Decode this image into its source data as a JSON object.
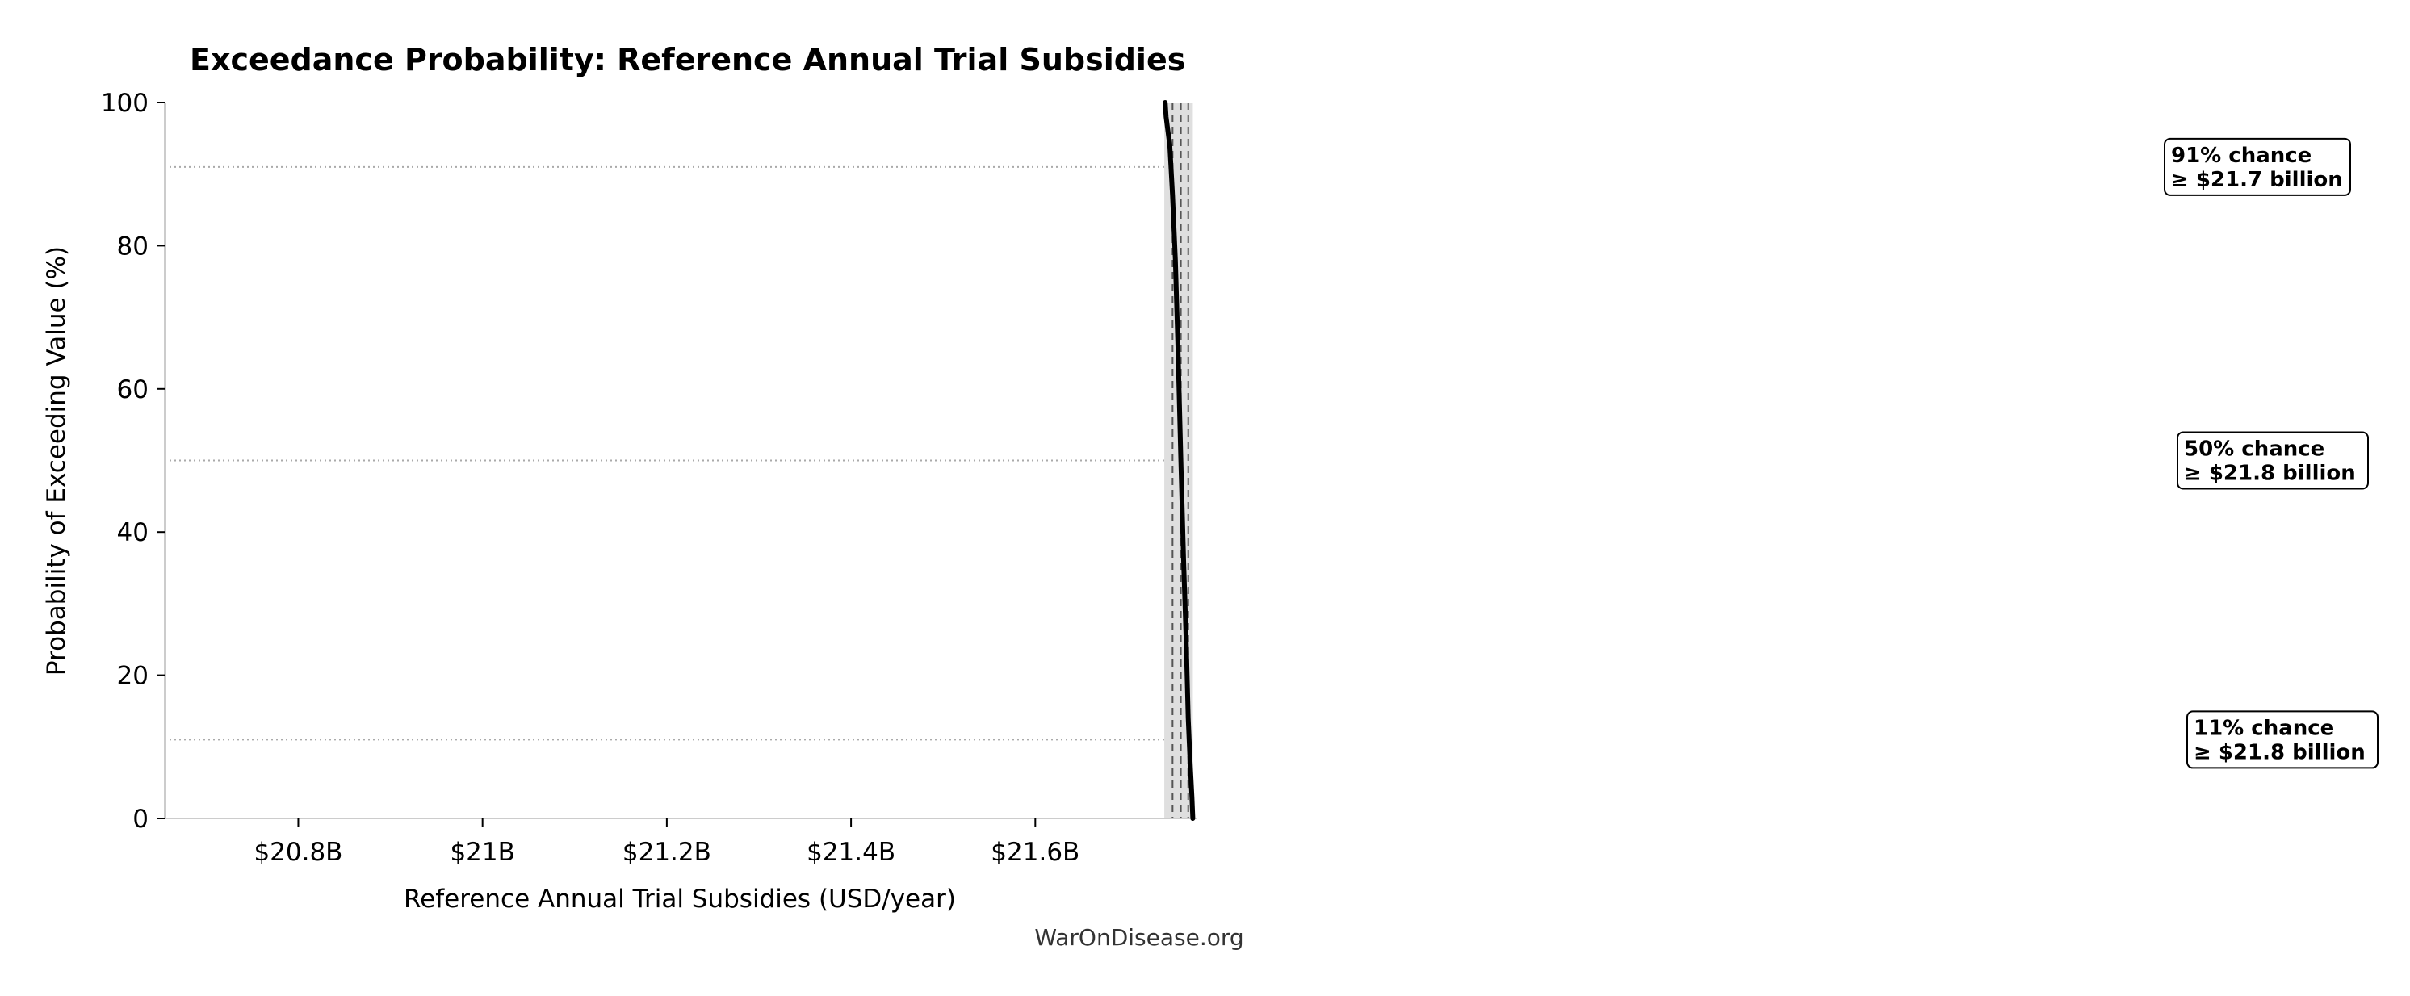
{
  "chart_data": {
    "type": "line",
    "title": "Exceedance Probability: Reference Annual Trial Subsidies",
    "xlabel": "Reference Annual Trial Subsidies (USD/year)",
    "ylabel": "Probability of Exceeding Value (%)",
    "xlim": [
      20.655,
      21.775
    ],
    "ylim": [
      0,
      100
    ],
    "x_ticks": [
      {
        "value": 20.8,
        "label": "$20.8B"
      },
      {
        "value": 21.0,
        "label": "$21B"
      },
      {
        "value": 21.2,
        "label": "$21.2B"
      },
      {
        "value": 21.4,
        "label": "$21.4B"
      },
      {
        "value": 21.6,
        "label": "$21.6B"
      }
    ],
    "y_ticks": [
      {
        "value": 0,
        "label": "0"
      },
      {
        "value": 20,
        "label": "20"
      },
      {
        "value": 40,
        "label": "40"
      },
      {
        "value": 60,
        "label": "60"
      },
      {
        "value": 80,
        "label": "80"
      },
      {
        "value": 100,
        "label": "100"
      }
    ],
    "series": [
      {
        "color": "#000000",
        "x": [
          21.741,
          21.742,
          21.746,
          21.749,
          21.752,
          21.755,
          21.758,
          21.761,
          21.764,
          21.766,
          21.768,
          21.77,
          21.771
        ],
        "y": [
          100,
          98,
          94,
          87,
          78,
          65,
          50,
          36,
          24,
          14,
          8,
          3,
          0
        ]
      }
    ],
    "confidence_band": {
      "x_min": 21.74,
      "x_max": 21.771,
      "color": "#d9d9d9"
    },
    "reference_lines": [
      {
        "x": 21.749,
        "color": "#555555"
      },
      {
        "x": 21.758,
        "color": "#555555"
      },
      {
        "x": 21.766,
        "color": "#555555"
      }
    ],
    "probability_lines": [
      91,
      50,
      11
    ],
    "annotations": [
      {
        "prob": 91,
        "line1": "91% chance",
        "line2": "≥ $21.7 billion"
      },
      {
        "prob": 50,
        "line1": "50% chance",
        "line2": "≥ $21.8 billion"
      },
      {
        "prob": 11,
        "line1": "11% chance",
        "line2": "≥ $21.8 billion"
      }
    ],
    "grid": false,
    "watermark": "WarOnDisease.org"
  }
}
